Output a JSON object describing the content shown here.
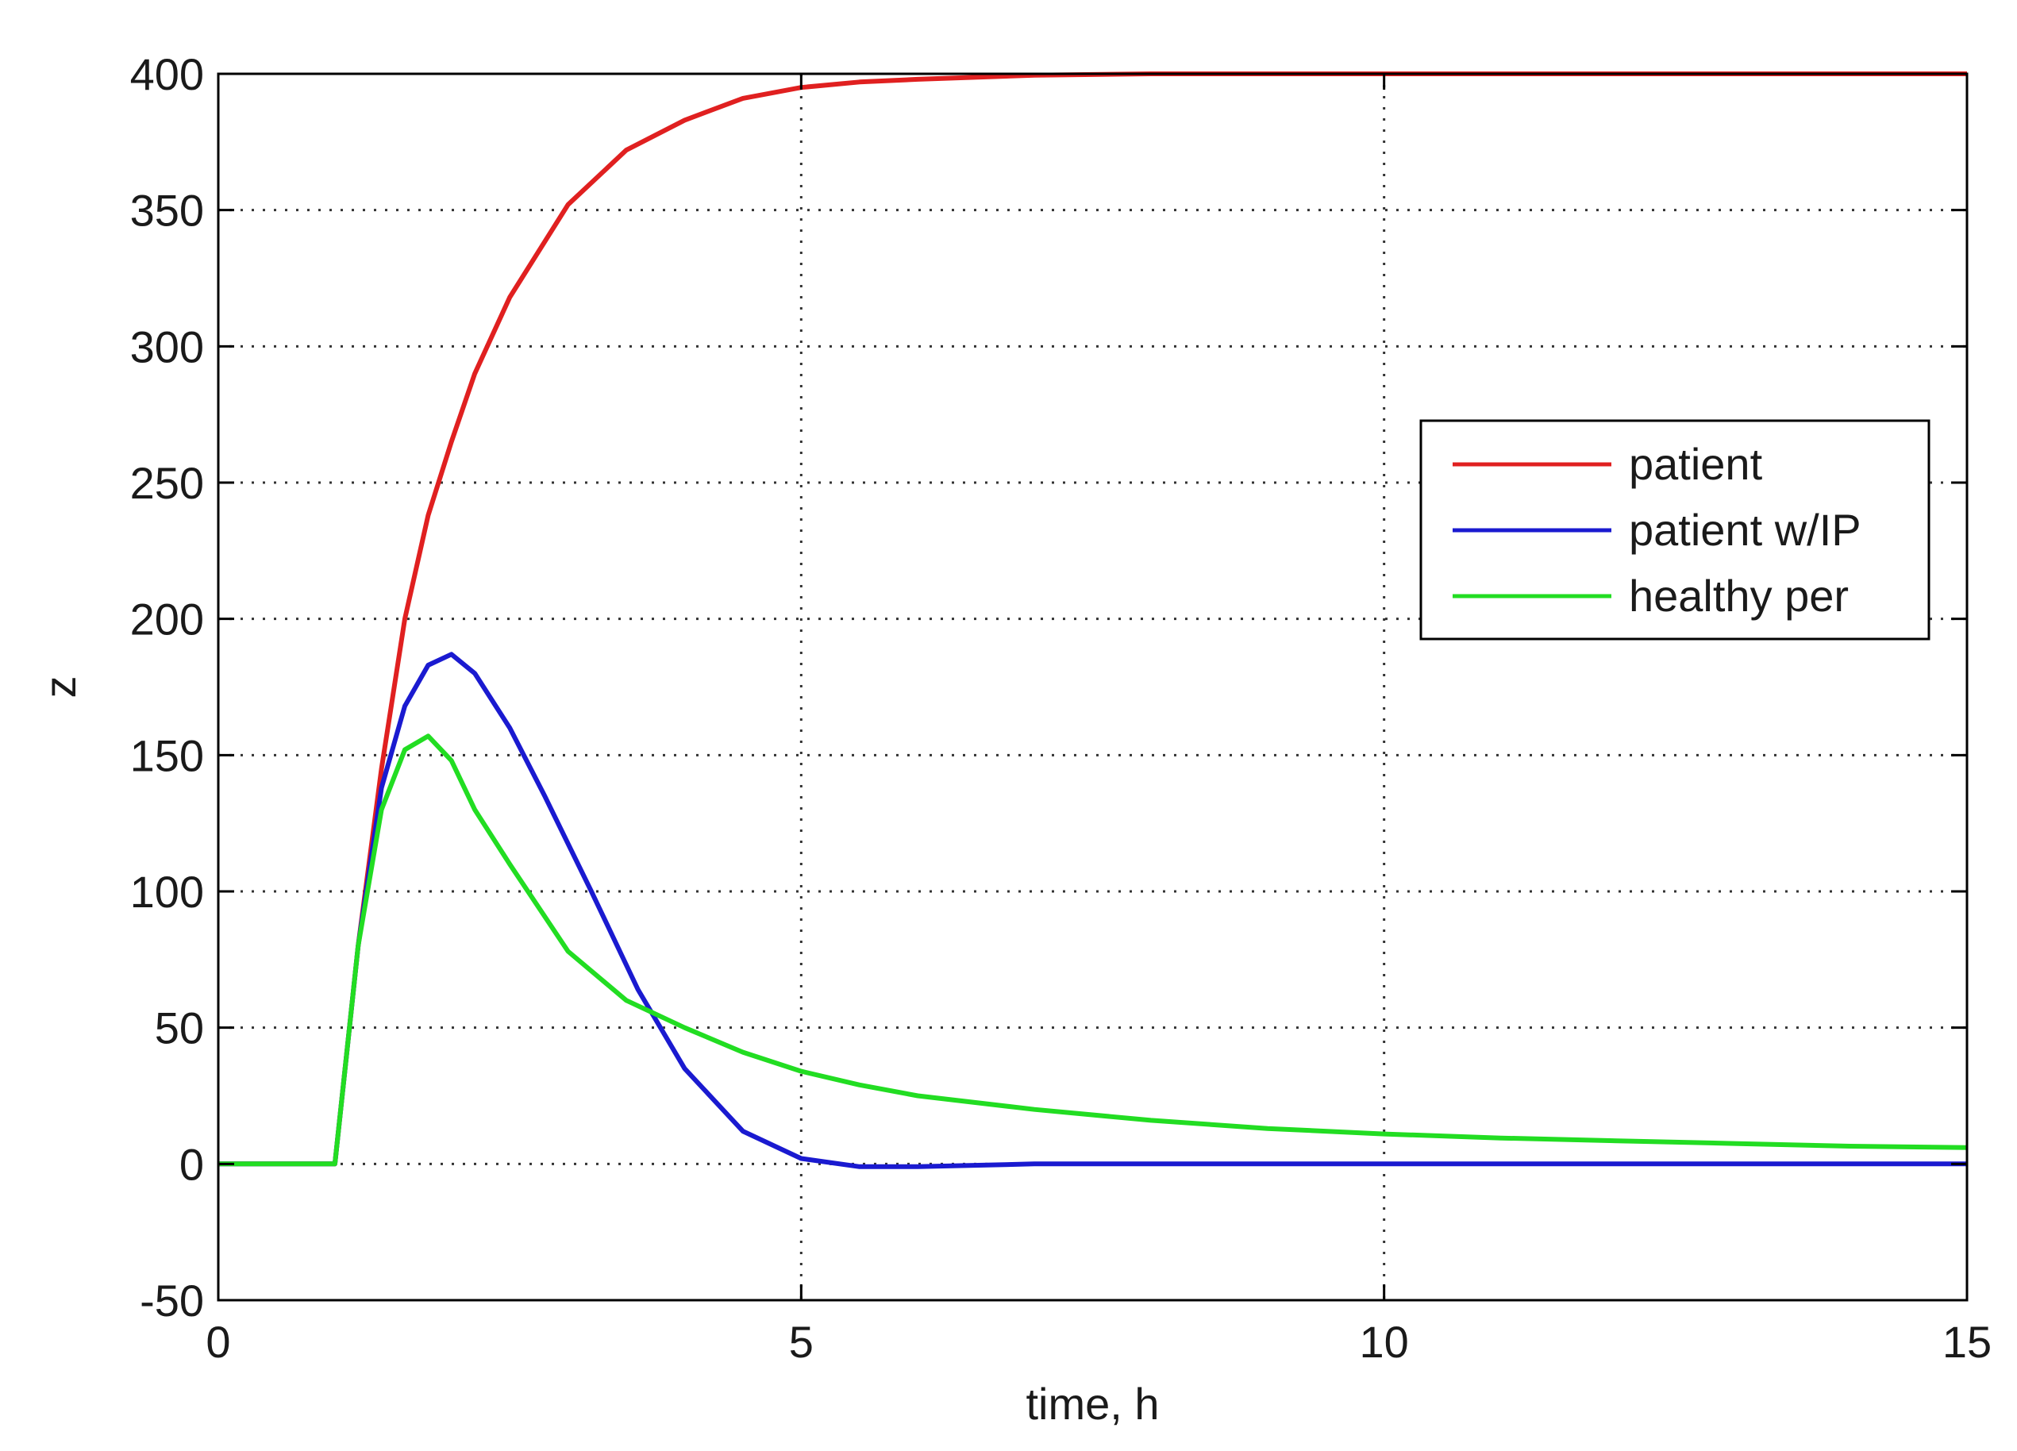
{
  "chart_data": {
    "type": "line",
    "title": "",
    "xlabel": "time, h",
    "ylabel": "z",
    "xlim": [
      0,
      15
    ],
    "ylim": [
      -50,
      400
    ],
    "xticks": [
      0,
      5,
      10,
      15
    ],
    "yticks": [
      -50,
      0,
      50,
      100,
      150,
      200,
      250,
      300,
      350,
      400
    ],
    "grid": true,
    "legend_position": "right, upper-middle",
    "series": [
      {
        "name": "patient",
        "color": "#e02020",
        "points": [
          [
            0,
            0
          ],
          [
            1,
            0
          ],
          [
            1.2,
            80
          ],
          [
            1.4,
            145
          ],
          [
            1.6,
            200
          ],
          [
            1.8,
            238
          ],
          [
            2,
            265
          ],
          [
            2.2,
            290
          ],
          [
            2.5,
            318
          ],
          [
            3,
            352
          ],
          [
            3.5,
            372
          ],
          [
            4,
            383
          ],
          [
            4.5,
            391
          ],
          [
            5,
            395
          ],
          [
            5.5,
            397
          ],
          [
            6,
            398
          ],
          [
            7,
            399.5
          ],
          [
            8,
            400
          ],
          [
            10,
            400
          ],
          [
            12,
            400
          ],
          [
            15,
            400
          ]
        ]
      },
      {
        "name": "patient w/IP",
        "color": "#1a1ad0",
        "points": [
          [
            0,
            0
          ],
          [
            1,
            0
          ],
          [
            1.1,
            40
          ],
          [
            1.2,
            80
          ],
          [
            1.4,
            138
          ],
          [
            1.6,
            168
          ],
          [
            1.8,
            183
          ],
          [
            2,
            187
          ],
          [
            2.2,
            180
          ],
          [
            2.5,
            160
          ],
          [
            2.8,
            135
          ],
          [
            3.2,
            100
          ],
          [
            3.6,
            64
          ],
          [
            4,
            35
          ],
          [
            4.5,
            12
          ],
          [
            5,
            2
          ],
          [
            5.5,
            -1
          ],
          [
            6,
            -1
          ],
          [
            7,
            0
          ],
          [
            9,
            0
          ],
          [
            12,
            0
          ],
          [
            15,
            0
          ]
        ]
      },
      {
        "name": "healthy per",
        "color": "#22dd22",
        "points": [
          [
            0,
            0
          ],
          [
            1,
            0
          ],
          [
            1.1,
            40
          ],
          [
            1.2,
            80
          ],
          [
            1.4,
            130
          ],
          [
            1.6,
            152
          ],
          [
            1.8,
            157
          ],
          [
            2,
            148
          ],
          [
            2.2,
            130
          ],
          [
            2.5,
            110
          ],
          [
            3,
            78
          ],
          [
            3.5,
            60
          ],
          [
            4,
            50
          ],
          [
            4.5,
            41
          ],
          [
            5,
            34
          ],
          [
            5.5,
            29
          ],
          [
            6,
            25
          ],
          [
            7,
            20
          ],
          [
            8,
            16
          ],
          [
            9,
            13
          ],
          [
            10,
            11
          ],
          [
            11,
            9.5
          ],
          [
            12,
            8.5
          ],
          [
            13,
            7.5
          ],
          [
            14,
            6.5
          ],
          [
            15,
            6
          ]
        ]
      }
    ]
  }
}
